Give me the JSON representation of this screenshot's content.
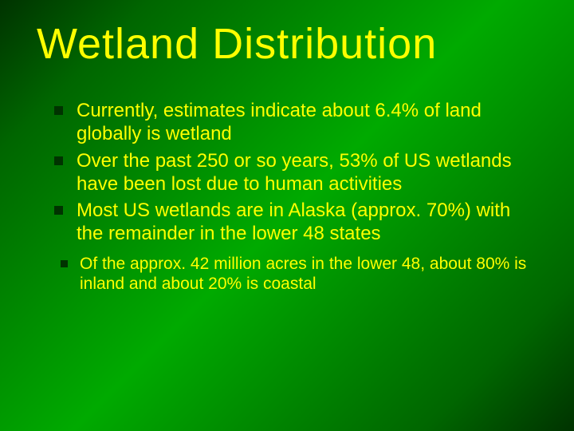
{
  "slide": {
    "title": "Wetland Distribution",
    "title_color": "#ffff00",
    "title_fontsize": 54,
    "title_font": "Impact",
    "background_gradient": [
      "#003300",
      "#006600",
      "#00aa00",
      "#006600",
      "#003300"
    ],
    "bullet_color": "#003300",
    "text_color": "#ffff00",
    "main_fontsize": 24,
    "sub_fontsize": 21,
    "bullets": [
      "Currently, estimates indicate about 6.4% of land globally is wetland",
      "Over the past 250 or so years, 53% of US wetlands have been lost due to human activities",
      "Most US wetlands are in Alaska (approx. 70%) with the remainder in the lower 48 states"
    ],
    "sub_bullets": [
      "Of the approx. 42 million acres in the lower 48, about 80% is inland and about 20% is coastal"
    ]
  }
}
